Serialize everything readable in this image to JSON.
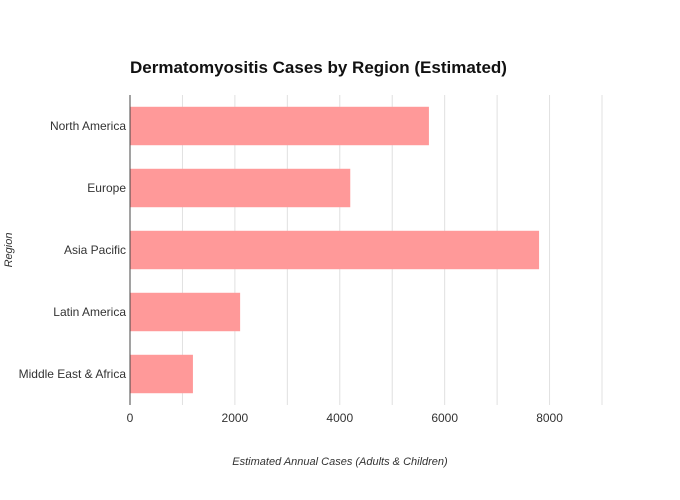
{
  "chart_data": {
    "type": "bar",
    "orientation": "horizontal",
    "title": "Dermatomyositis Cases by Region (Estimated)",
    "xlabel": "Estimated Annual Cases (Adults & Children)",
    "ylabel": "Region",
    "categories": [
      "North America",
      "Europe",
      "Asia Pacific",
      "Latin America",
      "Middle East & Africa"
    ],
    "values": [
      5700,
      4200,
      7800,
      2100,
      1200
    ],
    "xlim": [
      0,
      9000
    ],
    "x_ticks": [
      0,
      2000,
      4000,
      6000,
      8000
    ],
    "x_tick_labels": [
      "0",
      "2000",
      "4000",
      "6000",
      "8000"
    ],
    "grid": "vertical",
    "bar_color": "#ff9999",
    "gridline_color": "#e0e0e0",
    "axis_color": "#444444"
  }
}
